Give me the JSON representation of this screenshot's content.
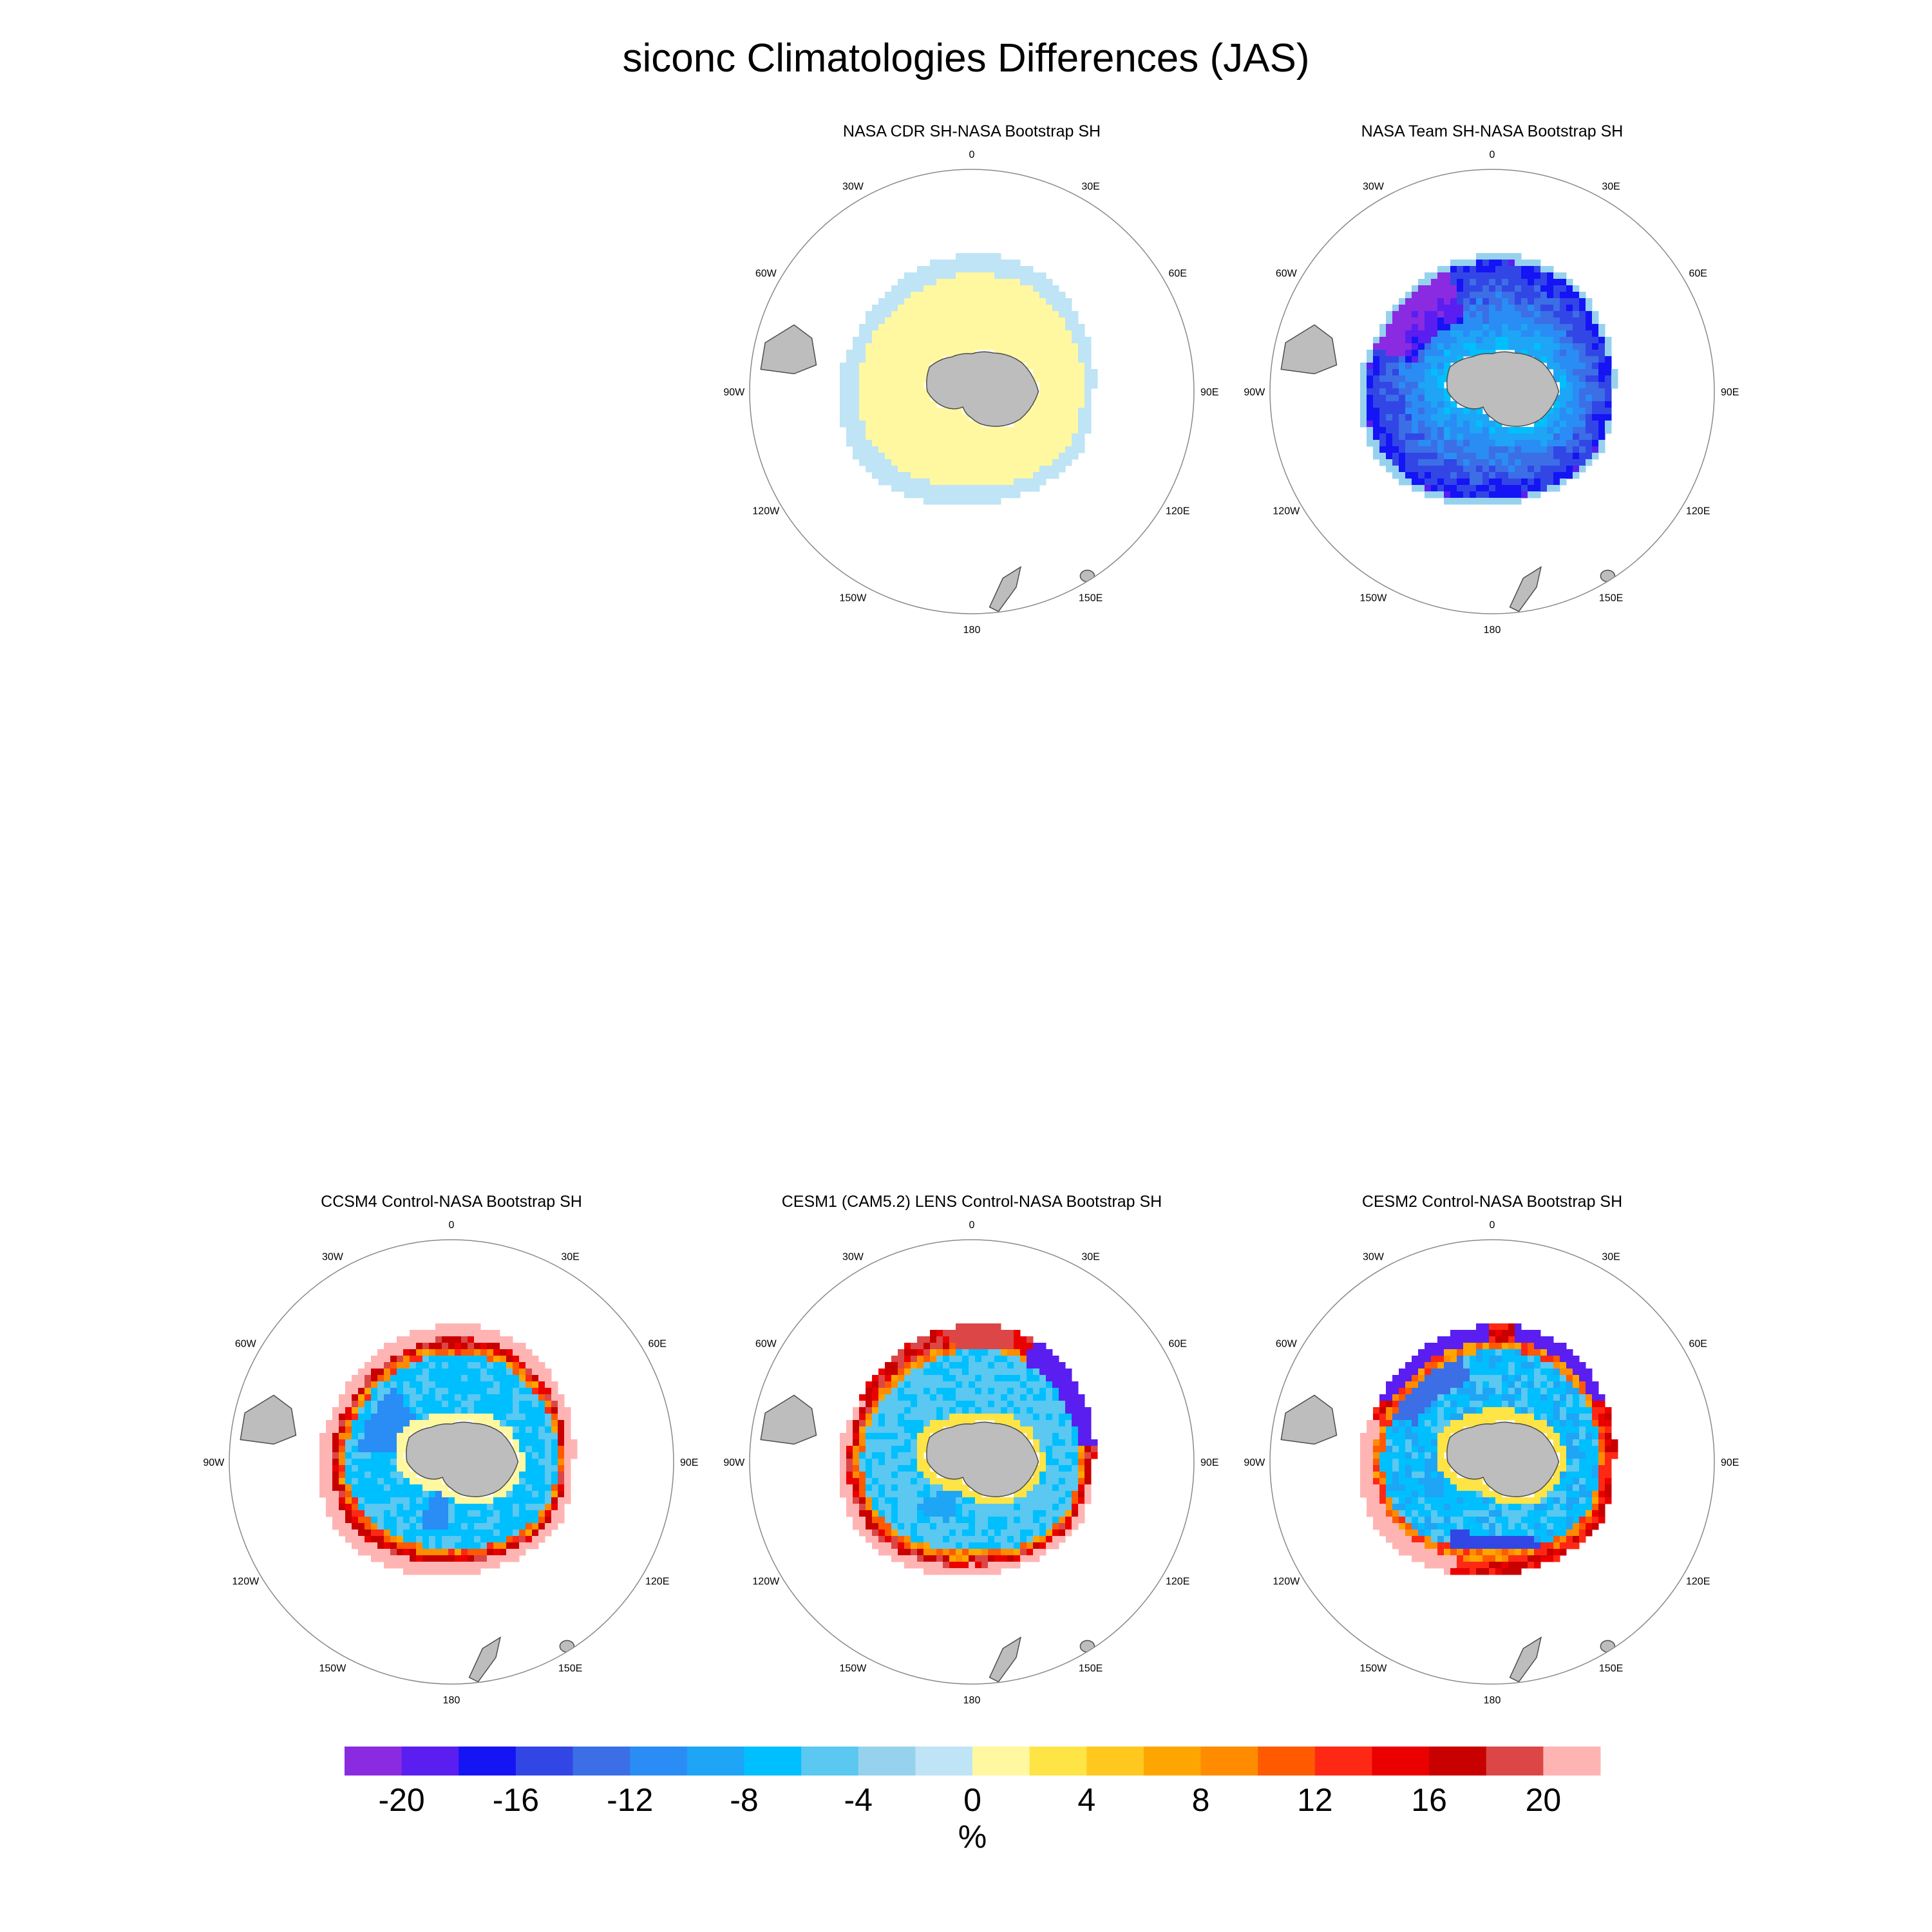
{
  "figure": {
    "title": "siconc Climatologies Differences (JAS)",
    "units": "%"
  },
  "lon_labels": [
    "0",
    "30E",
    "60E",
    "90E",
    "120E",
    "150E",
    "180",
    "150W",
    "120W",
    "90W",
    "60W",
    "30W"
  ],
  "chart_data": {
    "type": "heatmap",
    "title": "siconc Climatologies Differences (JAS)",
    "variable": "siconc",
    "season": "JAS",
    "projection": "south-polar-stereographic",
    "panels": [
      {
        "title": "NASA CDR SH-NASA Bootstrap SH",
        "pattern": "cdr"
      },
      {
        "title": "NASA Team SH-NASA Bootstrap SH",
        "pattern": "team"
      },
      {
        "title": "CCSM4 Control-NASA Bootstrap SH",
        "pattern": "ccsm4"
      },
      {
        "title": "CESM1 (CAM5.2) LENS Control-NASA Bootstrap SH",
        "pattern": "cesm1"
      },
      {
        "title": "CESM2 Control-NASA Bootstrap SH",
        "pattern": "cesm2"
      }
    ],
    "colorbar": {
      "label": "%",
      "levels": [
        -22,
        -20,
        -18,
        -16,
        -14,
        -12,
        -10,
        -8,
        -6,
        -4,
        -2,
        0,
        2,
        4,
        6,
        8,
        10,
        12,
        14,
        16,
        18,
        20,
        22
      ],
      "colors": [
        "#8a2be2",
        "#5a1ef0",
        "#1414f5",
        "#3246e6",
        "#3c6ee6",
        "#2a8cf5",
        "#1ea5f5",
        "#00bfff",
        "#5ac8f0",
        "#96d2ee",
        "#bee4f5",
        "#fff8a0",
        "#ffe446",
        "#ffc81e",
        "#ffa500",
        "#ff8c00",
        "#ff5a00",
        "#ff2814",
        "#eb0000",
        "#c80000",
        "#dc4646",
        "#ffb4b4"
      ],
      "tick_labels": [
        "-20",
        "-16",
        "-12",
        "-8",
        "-4",
        "0",
        "4",
        "8",
        "12",
        "16",
        "20"
      ]
    }
  }
}
